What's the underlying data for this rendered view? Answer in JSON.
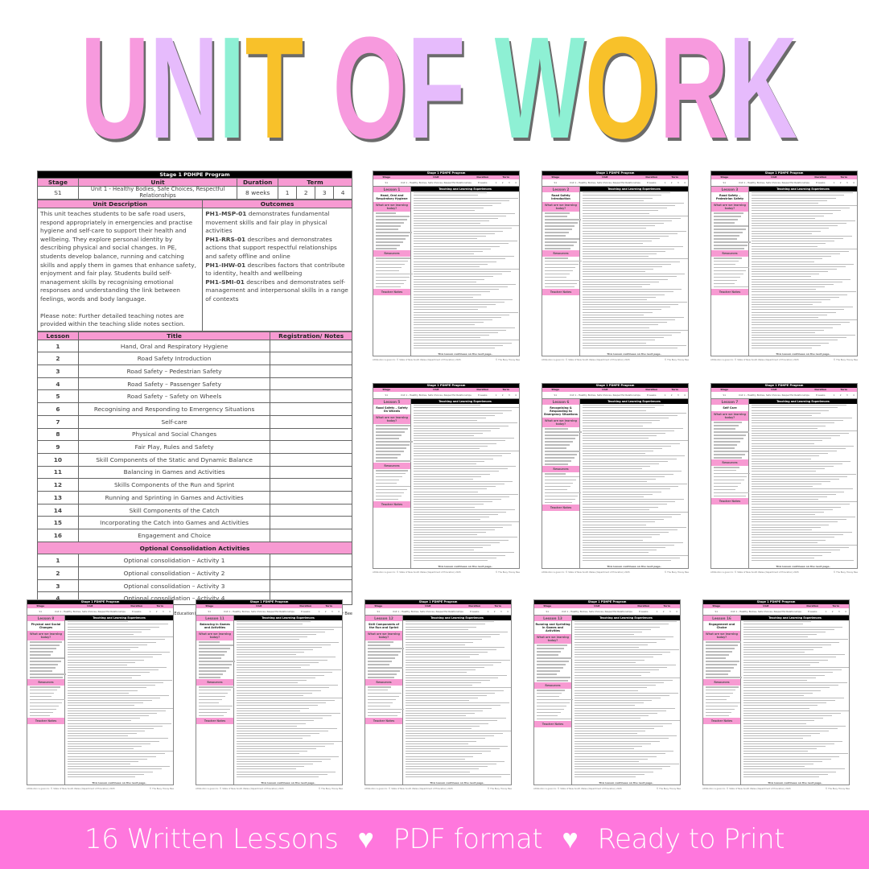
{
  "title": {
    "letters": [
      "U",
      "N",
      "I",
      "T",
      " ",
      "O",
      "F",
      " ",
      "W",
      "O",
      "R",
      "K"
    ],
    "colors": [
      "#f79ade",
      "#e6bbfc",
      "#8ef0d4",
      "#f8c12a",
      "",
      "#f79ade",
      "#e6bbfc",
      "",
      "#8ef0d4",
      "#f8c12a",
      "#f79ade",
      "#e6bbfc"
    ]
  },
  "program": {
    "heading": "Stage 1 PDHPE Program",
    "headers": {
      "stage": "Stage",
      "unit": "Unit",
      "duration": "Duration",
      "term": "Term"
    },
    "stage": "S1",
    "unit": "Unit 1 - Healthy Bodies, Safe Choices, Respectful Relationships",
    "duration": "8 weeks",
    "terms": [
      "1",
      "2",
      "3",
      "4"
    ],
    "desc_header": "Unit Description",
    "outcomes_header": "Outcomes",
    "description": "This unit teaches students to be safe road users, respond appropriately in emergencies and practise hygiene and self-care to support their health and wellbeing. They explore personal identity by describing physical and social changes. In PE, students develop balance, running and catching skills and apply them in games that enhance safety, enjoyment and fair play. Students build self-management skills by recognising emotional responses and understanding the link between feelings, words and body language.",
    "note": "Please note: Further detailed teaching notes are provided within the teaching slide notes section.",
    "outcomes": [
      {
        "code": "PH1-MSP-01",
        "text": " demonstrates fundamental movement skills and fair play in physical activities"
      },
      {
        "code": "PH1-RRS-01",
        "text": " describes and demonstrates actions that support respectful relationships and safety offline and online"
      },
      {
        "code": "PH1-IHW-01",
        "text": " describes factors that contribute to identity, health and wellbeing"
      },
      {
        "code": "PH1-SMI-01",
        "text": " describes and demonstrates self-management and interpersonal skills in a range of contexts"
      }
    ],
    "lesson_headers": {
      "lesson": "Lesson",
      "title": "Title",
      "notes": "Registration/ Notes"
    },
    "lessons": [
      {
        "n": "1",
        "t": "Hand, Oral and Respiratory Hygiene"
      },
      {
        "n": "2",
        "t": "Road Safety Introduction"
      },
      {
        "n": "3",
        "t": "Road Safety – Pedestrian Safety"
      },
      {
        "n": "4",
        "t": "Road Safety – Passenger Safety"
      },
      {
        "n": "5",
        "t": "Road Safety – Safety on Wheels"
      },
      {
        "n": "6",
        "t": "Recognising and Responding to Emergency Situations"
      },
      {
        "n": "7",
        "t": "Self-care"
      },
      {
        "n": "8",
        "t": "Physical and Social Changes"
      },
      {
        "n": "9",
        "t": "Fair Play, Rules and Safety"
      },
      {
        "n": "10",
        "t": "Skill Components of the Static and Dynamic Balance"
      },
      {
        "n": "11",
        "t": "Balancing in Games and Activities"
      },
      {
        "n": "12",
        "t": "Skills Components of the Run and Sprint"
      },
      {
        "n": "13",
        "t": "Running and Sprinting in Games and Activities"
      },
      {
        "n": "14",
        "t": "Skill Components of the Catch"
      },
      {
        "n": "15",
        "t": "Incorporating the Catch into Games and Activities"
      },
      {
        "n": "16",
        "t": "Engagement and Choice"
      }
    ],
    "optional_header": "Optional Consolidation Activities",
    "optional": [
      {
        "n": "1",
        "t": "Optional consolidation – Activity 1"
      },
      {
        "n": "2",
        "t": "Optional consolidation – Activity 2"
      },
      {
        "n": "3",
        "t": "Optional consolidation – Activity 3"
      },
      {
        "n": "4",
        "t": "Optional consolidation – Activity 4"
      }
    ],
    "attribution": "Attribution is given to: © State of New South Wales (Department of Education) 2025",
    "copyright": "© The Busy Honey Bee"
  },
  "thumb_common": {
    "tle": "Teaching and Learning Experiences",
    "learn": "What are we learning today?",
    "resources": "Resources",
    "teacher_notes": "Teacher Notes",
    "continues": "This lesson continues on the next page."
  },
  "thumbnails": [
    {
      "lesson": "Lesson 1",
      "name": "Hand, Oral and Respiratory Hygiene"
    },
    {
      "lesson": "Lesson 2",
      "name": "Road Safety Introduction"
    },
    {
      "lesson": "Lesson 3",
      "name": "Road Safety – Pedestrian Safety"
    },
    {
      "lesson": "Lesson 5",
      "name": "Road Safety – Safety On Wheels"
    },
    {
      "lesson": "Lesson 6",
      "name": "Recognising & Responding to Emergency Situations"
    },
    {
      "lesson": "Lesson 7",
      "name": "Self Care"
    },
    {
      "lesson": "Lesson 8",
      "name": "Physical and Social Changes"
    },
    {
      "lesson": "Lesson 11",
      "name": "Balancing in Games and Activities"
    },
    {
      "lesson": "Lesson 12",
      "name": "Skill Components of the Run and Sprint"
    },
    {
      "lesson": "Lesson 13",
      "name": "Running and Sprinting in Games and Activities"
    },
    {
      "lesson": "Lesson 16",
      "name": "Engagement and Choice"
    }
  ],
  "banner": {
    "items": [
      "16 Written Lessons",
      "PDF format",
      "Ready to Print"
    ],
    "separator": "♥"
  }
}
